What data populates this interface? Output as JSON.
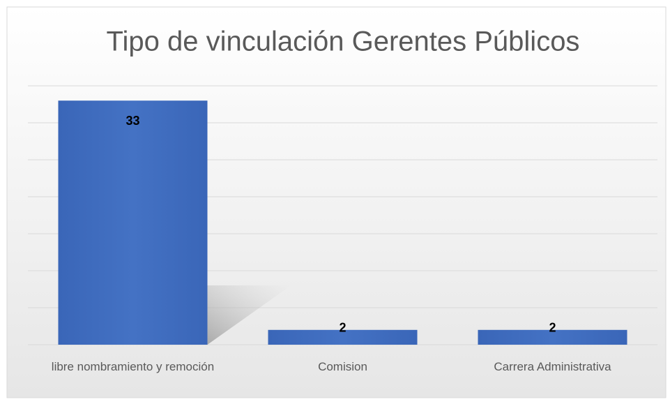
{
  "chart_data": {
    "type": "bar",
    "title": "Tipo de vinculación Gerentes Públicos",
    "categories": [
      "libre nombramiento y remoción",
      "Comision",
      "Carrera Administrativa"
    ],
    "values": [
      33,
      2,
      2
    ],
    "color": "#4472c4",
    "ylim": [
      0,
      35
    ],
    "yticks": [
      0,
      5,
      10,
      15,
      20,
      25,
      30,
      35
    ],
    "grid": true
  }
}
